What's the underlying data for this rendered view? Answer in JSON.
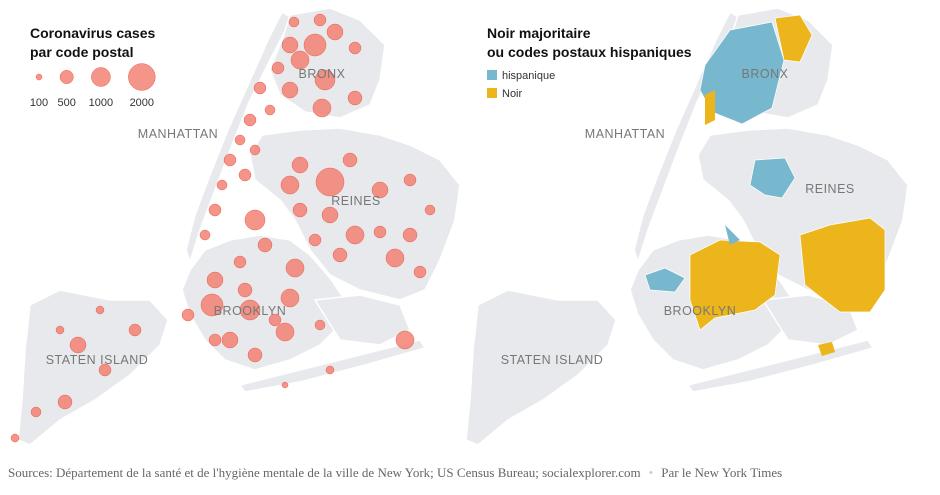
{
  "left_map": {
    "title": [
      "Coronavirus cases",
      "par code postal"
    ],
    "legend_sizes": [
      100,
      500,
      1000,
      2000
    ],
    "bubble_color": "#f2796b",
    "labels": [
      "MANHATTAN",
      "BRONX",
      "REINES",
      "BROOKLYN",
      "STATEN ISLAND"
    ]
  },
  "right_map": {
    "title": [
      "Noir majoritaire",
      "ou codes postaux hispaniques"
    ],
    "legend": [
      {
        "name": "hispanique",
        "color": "#77b8cf"
      },
      {
        "name": "Noir",
        "color": "#ebb51b"
      }
    ],
    "labels": [
      "MANHATTAN",
      "BRONX",
      "REINES",
      "BROOKLYN",
      "STATEN ISLAND"
    ]
  },
  "footer": {
    "sources": "Sources: Département de la santé et de l'hygiène mentale de la ville de New York; US Census Bureau; socialexplorer.com",
    "byline": "Par le New York Times"
  }
}
